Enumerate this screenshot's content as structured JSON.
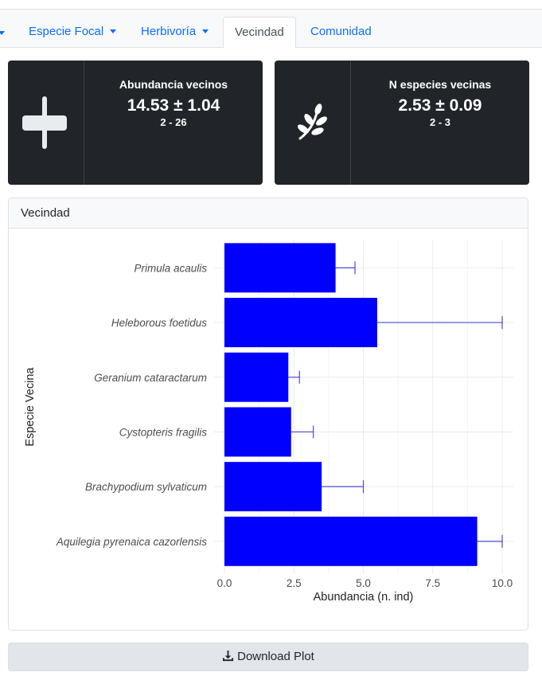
{
  "nav": {
    "tabs": [
      {
        "label": "Especie Focal",
        "dropdown": true,
        "active": false
      },
      {
        "label": "Herbivoría",
        "dropdown": true,
        "active": false
      },
      {
        "label": "Vecindad",
        "dropdown": false,
        "active": true
      },
      {
        "label": "Comunidad",
        "dropdown": false,
        "active": false
      }
    ]
  },
  "value_boxes": [
    {
      "icon": "plus-icon",
      "title": "Abundancia vecinos",
      "value": "14.53 ± 1.04",
      "range": "2 - 26"
    },
    {
      "icon": "leaf-sprig-icon",
      "title": "N especies vecinas",
      "value": "2.53 ± 0.09",
      "range": "2 - 3"
    }
  ],
  "card": {
    "header": "Vecindad"
  },
  "chart_data": {
    "type": "bar",
    "orientation": "horizontal",
    "categories": [
      "Primula acaulis",
      "Heleborous foetidus",
      "Geranium cataractarum",
      "Cystopteris fragilis",
      "Brachypodium sylvaticum",
      "Aquilegia pyrenaica cazorlensis"
    ],
    "values": [
      4.0,
      5.5,
      2.3,
      2.4,
      3.5,
      9.1
    ],
    "error_upper": [
      4.7,
      10.0,
      2.7,
      3.2,
      5.0,
      10.0
    ],
    "xlabel": "Abundancia (n. ind)",
    "ylabel": "Especie Vecina",
    "xlim": [
      0,
      10.4
    ],
    "x_ticks": [
      "0.0",
      "2.5",
      "5.0",
      "7.5",
      "10.0"
    ],
    "bar_color": "#0000ff",
    "grid": true
  },
  "download": {
    "label": "Download Plot",
    "icon": "download-icon"
  },
  "colors": {
    "link": "#0d6efd",
    "dark_box": "#212529"
  }
}
